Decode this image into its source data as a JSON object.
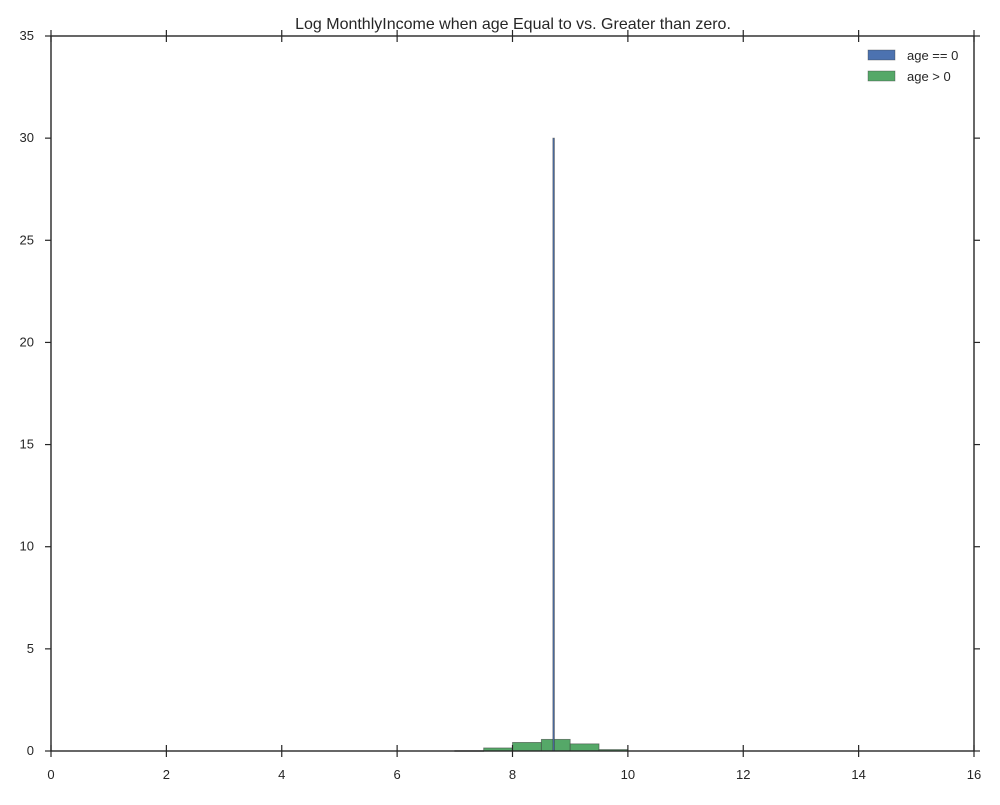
{
  "chart_data": {
    "type": "histogram",
    "title": "Log MonthlyIncome when age Equal to vs. Greater than zero.",
    "xlabel": "",
    "ylabel": "",
    "xlim": [
      0,
      16
    ],
    "ylim": [
      0,
      35
    ],
    "x_ticks": [
      "0",
      "2",
      "4",
      "6",
      "8",
      "10",
      "12",
      "14",
      "16"
    ],
    "y_ticks": [
      "0",
      "5",
      "10",
      "15",
      "20",
      "25",
      "30",
      "35"
    ],
    "grid": false,
    "legend_position": "top-right",
    "series": [
      {
        "name": "age == 0",
        "color": "#4c72b0",
        "bins": [
          {
            "x0": 8.7,
            "x1": 8.72,
            "value": 30
          }
        ]
      },
      {
        "name": "age > 0",
        "color": "#55a868",
        "bins": [
          {
            "x0": 7.0,
            "x1": 7.5,
            "value": 0.02
          },
          {
            "x0": 7.5,
            "x1": 8.0,
            "value": 0.15
          },
          {
            "x0": 8.0,
            "x1": 8.5,
            "value": 0.42
          },
          {
            "x0": 8.5,
            "x1": 9.0,
            "value": 0.57
          },
          {
            "x0": 9.0,
            "x1": 9.5,
            "value": 0.35
          },
          {
            "x0": 9.5,
            "x1": 10.0,
            "value": 0.07
          }
        ]
      }
    ]
  }
}
